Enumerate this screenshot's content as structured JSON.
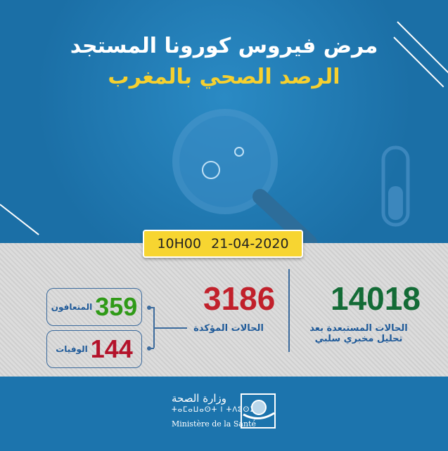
{
  "header": {
    "title": "مرض فيروس كورونا المستجد",
    "subtitle": "الرصد الصحي بالمغرب"
  },
  "date": {
    "time": "10H00",
    "date": "21-04-2020"
  },
  "stats": {
    "excluded": {
      "value": "14018",
      "label_line1": "الحالات المستبعدة بعد",
      "label_line2": "تحليل مخبري سلبي",
      "color": "#136b36"
    },
    "confirmed": {
      "value": "3186",
      "label": "الحالات المؤكدة",
      "color": "#c1202b"
    },
    "recovered": {
      "value": "359",
      "label": "المتعافون",
      "color": "#2f9a17"
    },
    "deaths": {
      "value": "144",
      "label": "الوفيات",
      "color": "#b4122a"
    }
  },
  "footer": {
    "ministry_ar": "وزارة الصحة",
    "ministry_tifinagh": "ⵜⴰⵎⴰⵡⴰⵙⵜ ⵏ ⵜⴷⵓⵙⵉ",
    "ministry_fr": "Ministère de la Santé"
  },
  "colors": {
    "blue": "#1c74ad",
    "yellow": "#f6d02f"
  },
  "icons": [
    "magnifier-virus-icon",
    "test-tube-icon",
    "ministry-logo-icon"
  ]
}
